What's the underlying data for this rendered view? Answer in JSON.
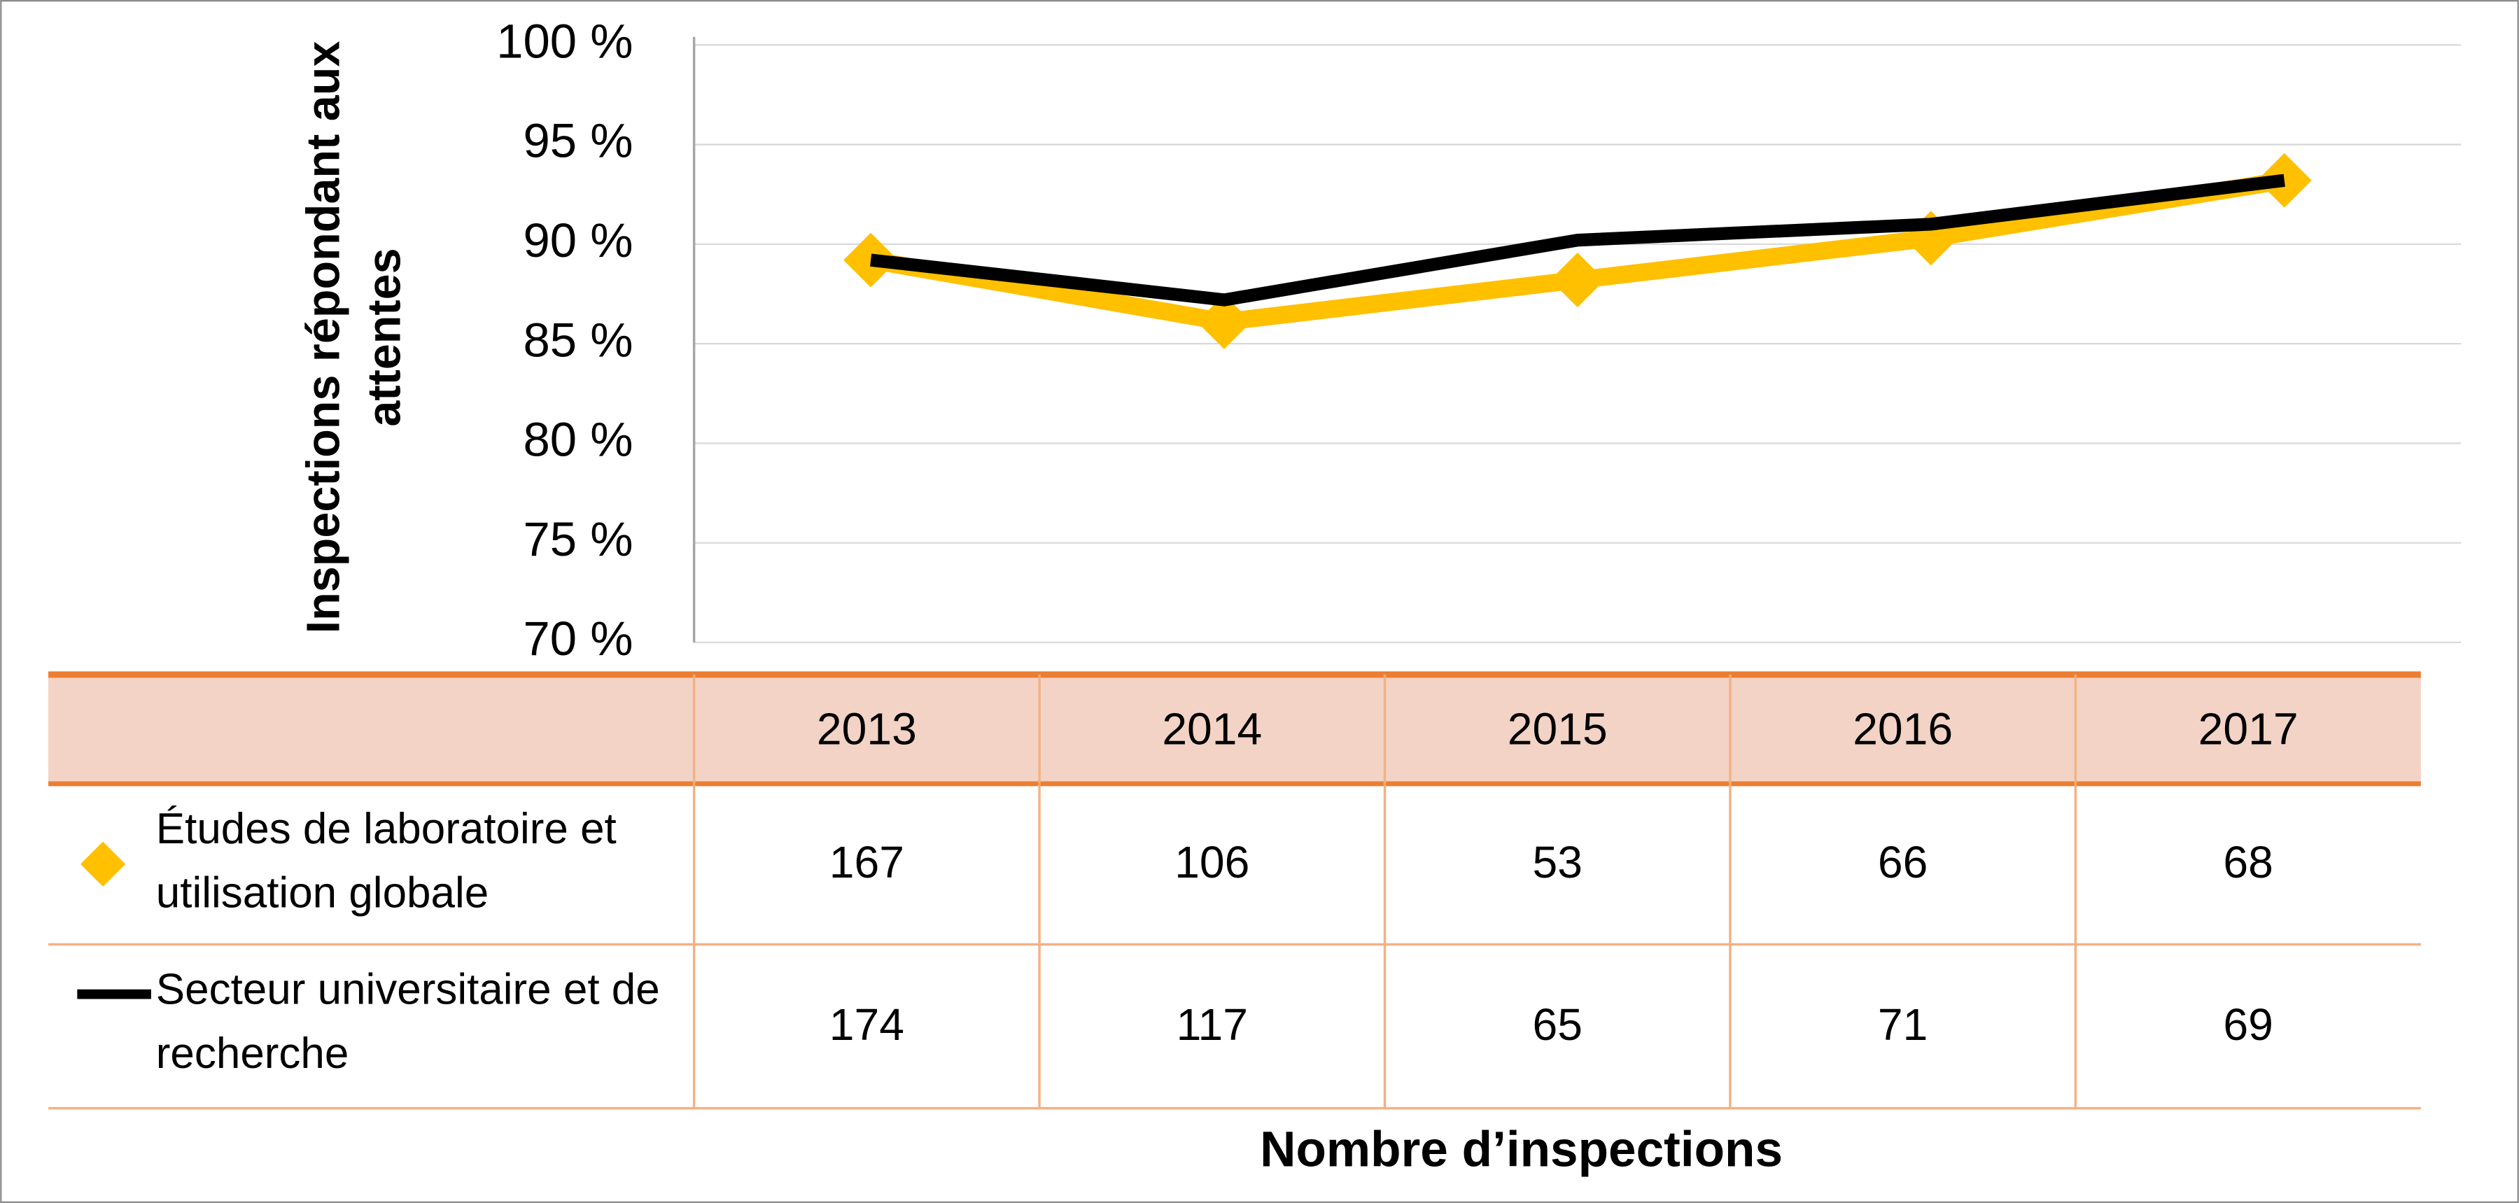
{
  "chart_data": {
    "type": "line",
    "ylabel": "Inspections répondant aux attentes",
    "xlabel": "Nombre d’inspections",
    "categories": [
      "2013",
      "2014",
      "2015",
      "2016",
      "2017"
    ],
    "ylim": [
      70,
      100
    ],
    "yticks": [
      {
        "value": 70,
        "label": "70 %"
      },
      {
        "value": 75,
        "label": "75 %"
      },
      {
        "value": 80,
        "label": "80 %"
      },
      {
        "value": 85,
        "label": "85 %"
      },
      {
        "value": 90,
        "label": "90 %"
      },
      {
        "value": 95,
        "label": "95 %"
      },
      {
        "value": 100,
        "label": "100 %"
      }
    ],
    "grid": true,
    "series": [
      {
        "name": "Études de laboratoire et utilisation globale",
        "color": "#ffc000",
        "marker": "diamond",
        "values": [
          89.2,
          86.1,
          88.2,
          90.3,
          93.2
        ],
        "inspections": [
          167,
          106,
          53,
          66,
          68
        ]
      },
      {
        "name": "Secteur universitaire et de recherche",
        "color": "#000000",
        "marker": "none",
        "values": [
          89.2,
          87.2,
          90.2,
          91.0,
          93.2
        ],
        "inspections": [
          174,
          117,
          65,
          71,
          69
        ]
      }
    ]
  }
}
